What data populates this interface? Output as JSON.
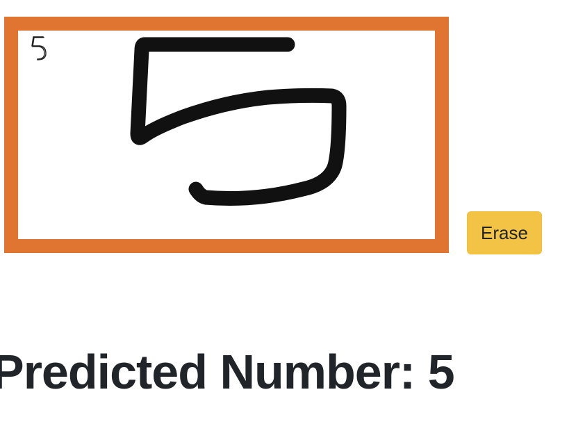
{
  "canvas": {
    "thumbnail_label": "5",
    "border_color": "#e07431",
    "stroke_color": "#111111"
  },
  "controls": {
    "erase_label": "Erase",
    "erase_color": "#f2c344"
  },
  "result": {
    "prefix": "Predicted Number: ",
    "value": "5"
  }
}
